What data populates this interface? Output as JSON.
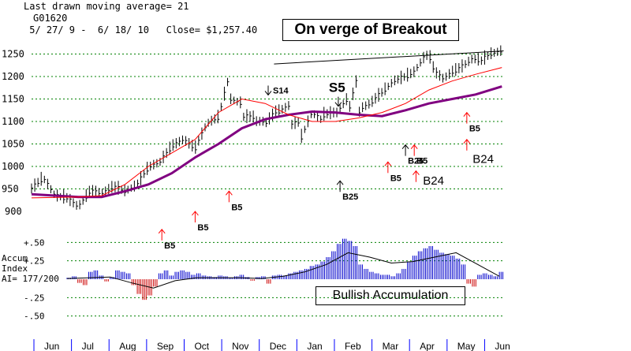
{
  "header": {
    "ma_line": "Last drawn moving average= 21",
    "ticker": "G01620",
    "range_line": " 5/ 27/ 9 -  6/ 18/ 10   Close= $1,257.40",
    "title_box": "On verge of Breakout",
    "accum_box": "Bullish Accumulation"
  },
  "accum_labels": {
    "line1": "Accum",
    "line2": "Index",
    "line3": "AI= 177/200"
  },
  "colors": {
    "price_bars": "#000000",
    "ma_short": "#ff0000",
    "ma_long": "#800080",
    "accum_positive": "#0000cc",
    "accum_negative": "#cc0000",
    "buy_arrow": "#ff0000",
    "sell_arrow": "#000000",
    "grid": "#008000",
    "axis_ticks": "#0000ff"
  },
  "chart_data": [
    {
      "type": "line",
      "name": "price",
      "ylim": [
        900,
        1265
      ],
      "yticks": [
        950,
        1000,
        1050,
        1100,
        1150,
        1200,
        1250
      ],
      "ytick_labels": [
        "950",
        "1000",
        "1050",
        "1100",
        "1150",
        "1200",
        "1250"
      ],
      "bottom_partial_label": "900",
      "months": [
        "Jun",
        "Jul",
        "Aug",
        "Sep",
        "Oct",
        "Nov",
        "Dec",
        "Jan",
        "Feb",
        "Mar",
        "Apr",
        "May",
        "Jun"
      ],
      "x_week": [
        0,
        2,
        4,
        6,
        8,
        10,
        12,
        14,
        16,
        18,
        20,
        22,
        24,
        26,
        28,
        30,
        32,
        34,
        36,
        38,
        40,
        42,
        44,
        46,
        48,
        50,
        52,
        54,
        55.6
      ],
      "close": [
        950,
        975,
        935,
        930,
        910,
        945,
        940,
        955,
        945,
        958,
        998,
        1010,
        1045,
        1060,
        1040,
        1095,
        1110,
        1210,
        1140,
        1110,
        1100,
        1125,
        1135,
        1100,
        1120,
        1100,
        1120,
        1150,
        1190
      ],
      "x_week_2": [
        32.5,
        34,
        36,
        38,
        40,
        42,
        44,
        46,
        48,
        50,
        52,
        54,
        55.6,
        56.5,
        58,
        60,
        62,
        64,
        65.5,
        67,
        68,
        69,
        70.5,
        72,
        73.5,
        75.5,
        77,
        78.5,
        80.5
      ],
      "close_2": [
        1135,
        1150,
        1110,
        1100,
        1095,
        1120,
        1090,
        1060,
        1120,
        1115,
        1115,
        1110,
        1110,
        1130,
        1140,
        1165,
        1190,
        1200,
        1210,
        1240,
        1250,
        1210,
        1195,
        1210,
        1220,
        1240,
        1235,
        1250,
        1257.4
      ],
      "ma21_week": [
        0,
        8,
        12,
        16,
        20,
        24,
        28,
        32,
        36,
        40,
        44,
        48,
        52,
        56,
        60,
        64,
        68,
        72,
        76,
        80.5
      ],
      "ma21": [
        930,
        932,
        935,
        960,
        1000,
        1030,
        1060,
        1120,
        1150,
        1140,
        1115,
        1100,
        1100,
        1108,
        1120,
        1140,
        1170,
        1190,
        1205,
        1220
      ],
      "ma_long_week": [
        0,
        8,
        12,
        16,
        20,
        24,
        28,
        32,
        36,
        40,
        44,
        48,
        52,
        56,
        60,
        64,
        68,
        72,
        76,
        80.5
      ],
      "ma_long": [
        938,
        932,
        932,
        945,
        960,
        985,
        1020,
        1050,
        1085,
        1105,
        1115,
        1122,
        1120,
        1115,
        1112,
        1125,
        1140,
        1150,
        1160,
        1178
      ],
      "trendline": [
        {
          "week": 41.5,
          "value": 1228
        },
        {
          "week": 80.8,
          "value": 1257
        }
      ]
    },
    {
      "type": "bar",
      "name": "accumulation_index",
      "ylim": [
        -0.6,
        0.6
      ],
      "yticks": [
        0.5,
        0.25,
        -0.25,
        -0.5
      ],
      "ytick_labels": [
        "+.50",
        "+.25",
        "-.25",
        "-.50"
      ],
      "x_week": [
        0,
        1,
        2,
        3,
        4,
        5,
        6,
        7,
        8,
        9,
        10,
        11,
        12,
        13,
        14,
        15,
        16,
        17,
        18,
        19,
        20,
        21,
        22,
        23,
        24,
        25,
        26,
        27,
        28,
        29,
        30,
        31,
        32,
        33,
        34,
        35,
        36,
        37,
        38,
        39,
        40,
        41,
        42,
        43,
        44,
        45,
        46,
        47,
        48,
        49,
        50,
        51,
        52,
        53,
        54,
        55,
        56,
        57,
        58,
        59,
        60,
        61,
        62,
        63,
        64,
        65,
        66,
        67,
        68,
        69,
        70,
        71,
        72,
        73,
        74,
        75,
        76,
        77,
        78,
        79,
        80
      ],
      "values": [
        0.02,
        0.04,
        -0.05,
        -0.08,
        0.1,
        0.12,
        0.05,
        -0.03,
        0.03,
        0.12,
        0.1,
        0.08,
        -0.08,
        -0.2,
        -0.28,
        -0.22,
        -0.1,
        0.08,
        0.12,
        0.05,
        0.1,
        0.12,
        0.1,
        0.06,
        0.08,
        0.05,
        0.04,
        0.03,
        0.05,
        0.04,
        0.02,
        0.04,
        0.06,
        0.03,
        -0.02,
        0.03,
        0.04,
        -0.06,
        0.05,
        0.06,
        0.05,
        0.08,
        0.1,
        0.12,
        0.14,
        0.18,
        0.2,
        0.24,
        0.3,
        0.38,
        0.48,
        0.55,
        0.52,
        0.45,
        0.2,
        0.14,
        0.1,
        0.08,
        0.06,
        0.06,
        0.04,
        0.08,
        0.14,
        0.24,
        0.32,
        0.38,
        0.42,
        0.45,
        0.4,
        0.36,
        0.34,
        0.32,
        0.28,
        0.2,
        -0.06,
        -0.1,
        0.06,
        0.08,
        0.06,
        0.04,
        0.1
      ],
      "ma_week": [
        0,
        8,
        12,
        16,
        20,
        24,
        28,
        32,
        36,
        40,
        44,
        48,
        52,
        56,
        60,
        64,
        68,
        72,
        76,
        80
      ],
      "ma": [
        0.01,
        0.03,
        -0.05,
        -0.12,
        -0.02,
        0.02,
        0.02,
        0.02,
        0.01,
        0.04,
        0.1,
        0.2,
        0.36,
        0.3,
        0.22,
        0.24,
        0.3,
        0.36,
        0.2,
        0.04
      ]
    }
  ],
  "signals": [
    {
      "label": "S14",
      "week": 40.5,
      "value": 1180,
      "dir": "down",
      "kind": "sell"
    },
    {
      "label": "S5",
      "week": 52.5,
      "value": 1155,
      "dir": "down",
      "kind": "sell_big"
    },
    {
      "label": "B25",
      "week": 52.8,
      "value": 968,
      "dir": "up",
      "kind": "buy_black"
    },
    {
      "label": "B5",
      "week": 22.3,
      "value": 860,
      "dir": "up",
      "kind": "buy"
    },
    {
      "label": "B5",
      "week": 28,
      "value": 900,
      "dir": "up",
      "kind": "buy"
    },
    {
      "label": "B5",
      "week": 33.8,
      "value": 945,
      "dir": "up",
      "kind": "buy"
    },
    {
      "label": "B5",
      "week": 61,
      "value": 1010,
      "dir": "up",
      "kind": "buy"
    },
    {
      "label": "B26",
      "week": 64,
      "value": 1048,
      "dir": "up",
      "kind": "buy_black"
    },
    {
      "label": "B5",
      "week": 65.5,
      "value": 1048,
      "dir": "up",
      "kind": "buy"
    },
    {
      "label": "",
      "week": 65.8,
      "value": 990,
      "dir": "up",
      "kind": "buy"
    },
    {
      "label": "B5",
      "week": 74.5,
      "value": 1120,
      "dir": "up",
      "kind": "buy"
    },
    {
      "label": "",
      "week": 74.5,
      "value": 1060,
      "dir": "up",
      "kind": "buy"
    }
  ],
  "extra_labels": [
    {
      "text": "B24",
      "week": 75.5,
      "value": 1008
    },
    {
      "text": "B24",
      "week": 67,
      "value": 960
    }
  ]
}
